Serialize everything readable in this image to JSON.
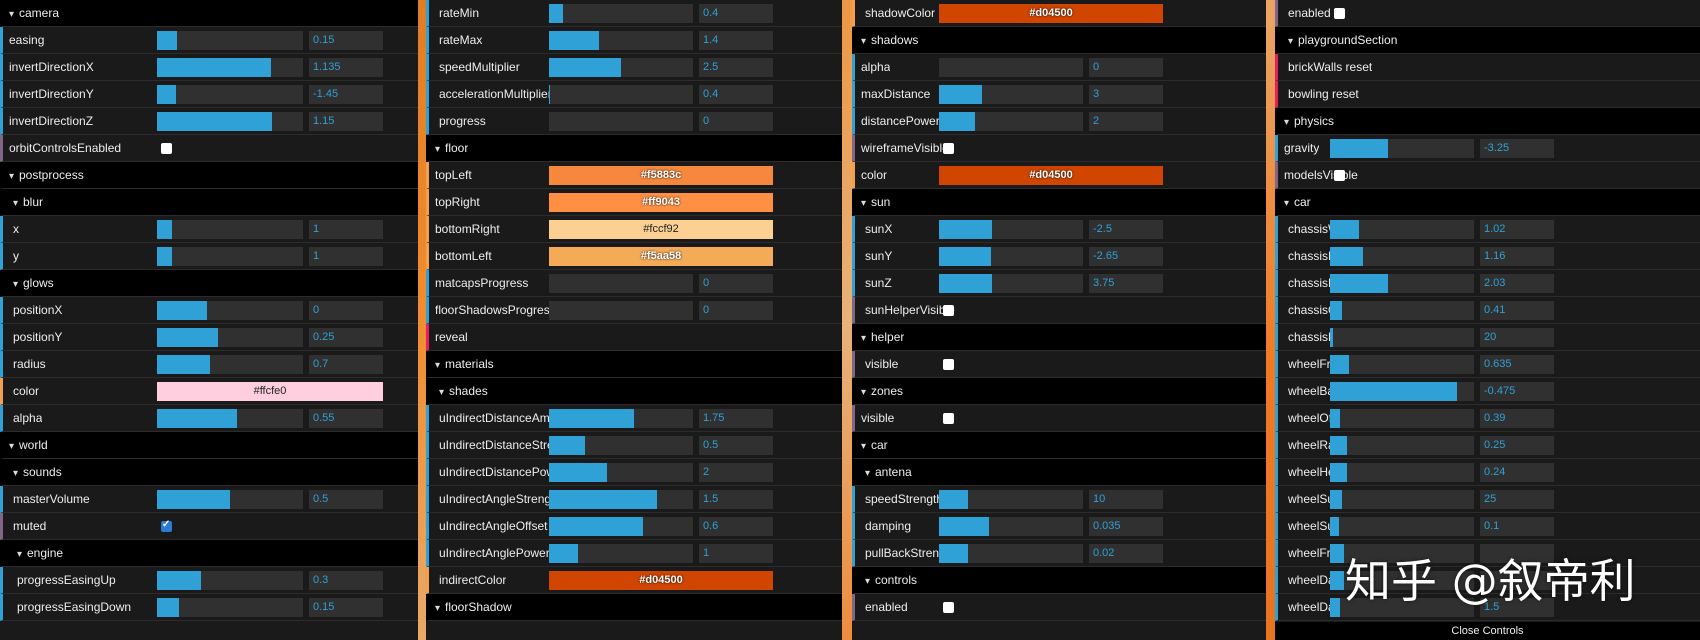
{
  "panel1": [
    {
      "type": "folder",
      "label": "camera",
      "depth": 0
    },
    {
      "type": "num",
      "label": "easing",
      "value": "0.15",
      "fill": 0.14,
      "depth": 0
    },
    {
      "type": "num",
      "label": "invertDirectionX",
      "value": "1.135",
      "fill": 0.78,
      "depth": 0
    },
    {
      "type": "num",
      "label": "invertDirectionY",
      "value": "-1.45",
      "fill": 0.13,
      "depth": 0
    },
    {
      "type": "num",
      "label": "invertDirectionZ",
      "value": "1.15",
      "fill": 0.79,
      "depth": 0
    },
    {
      "type": "bool",
      "label": "orbitControlsEnabled",
      "checked": false,
      "depth": 0
    },
    {
      "type": "folder",
      "label": "postprocess",
      "depth": 0
    },
    {
      "type": "folder",
      "label": "blur",
      "depth": 1
    },
    {
      "type": "num",
      "label": "x",
      "value": "1",
      "fill": 0.1,
      "depth": 1
    },
    {
      "type": "num",
      "label": "y",
      "value": "1",
      "fill": 0.1,
      "depth": 1
    },
    {
      "type": "folder",
      "label": "glows",
      "depth": 1
    },
    {
      "type": "num",
      "label": "positionX",
      "value": "0",
      "fill": 0.34,
      "depth": 1
    },
    {
      "type": "num",
      "label": "positionY",
      "value": "0.25",
      "fill": 0.42,
      "depth": 1
    },
    {
      "type": "num",
      "label": "radius",
      "value": "0.7",
      "fill": 0.36,
      "depth": 1
    },
    {
      "type": "color",
      "label": "color",
      "value": "#ffcfe0",
      "depth": 1
    },
    {
      "type": "num",
      "label": "alpha",
      "value": "0.55",
      "fill": 0.55,
      "depth": 1
    },
    {
      "type": "folder",
      "label": "world",
      "depth": 0
    },
    {
      "type": "folder",
      "label": "sounds",
      "depth": 1
    },
    {
      "type": "num",
      "label": "masterVolume",
      "value": "0.5",
      "fill": 0.5,
      "depth": 1
    },
    {
      "type": "bool",
      "label": "muted",
      "checked": true,
      "depth": 1
    },
    {
      "type": "folder",
      "label": "engine",
      "depth": 2
    },
    {
      "type": "num",
      "label": "progressEasingUp",
      "value": "0.3",
      "fill": 0.3,
      "depth": 2
    },
    {
      "type": "num",
      "label": "progressEasingDown",
      "value": "0.15",
      "fill": 0.15,
      "depth": 2
    }
  ],
  "panel2": [
    {
      "type": "num",
      "label": "rateMin",
      "value": "0.4",
      "fill": 0.1,
      "depth": 1
    },
    {
      "type": "num",
      "label": "rateMax",
      "value": "1.4",
      "fill": 0.35,
      "depth": 1
    },
    {
      "type": "num",
      "label": "speedMultiplier",
      "value": "2.5",
      "fill": 0.5,
      "depth": 1
    },
    {
      "type": "num",
      "label": "accelerationMultiplier",
      "value": "0.4",
      "fill": 0.01,
      "depth": 1
    },
    {
      "type": "num",
      "label": "progress",
      "value": "0",
      "fill": 0,
      "depth": 1
    },
    {
      "type": "folder",
      "label": "floor",
      "depth": 0
    },
    {
      "type": "color",
      "label": "topLeft",
      "value": "#f5883c",
      "depth": 0
    },
    {
      "type": "color",
      "label": "topRight",
      "value": "#ff9043",
      "depth": 0
    },
    {
      "type": "color",
      "label": "bottomRight",
      "value": "#fccf92",
      "depth": 0
    },
    {
      "type": "color",
      "label": "bottomLeft",
      "value": "#f5aa58",
      "depth": 0
    },
    {
      "type": "num",
      "label": "matcapsProgress",
      "value": "0",
      "fill": 0,
      "depth": 0
    },
    {
      "type": "num",
      "label": "floorShadowsProgress",
      "value": "0",
      "fill": 0,
      "depth": 0
    },
    {
      "type": "func",
      "label": "reveal",
      "depth": 0
    },
    {
      "type": "folder",
      "label": "materials",
      "depth": 0
    },
    {
      "type": "folder",
      "label": "shades",
      "depth": 1
    },
    {
      "type": "num",
      "label": "uIndirectDistanceAmplitude",
      "value": "1.75",
      "fill": 0.59,
      "depth": 1
    },
    {
      "type": "num",
      "label": "uIndirectDistanceStrength",
      "value": "0.5",
      "fill": 0.25,
      "depth": 1
    },
    {
      "type": "num",
      "label": "uIndirectDistancePower",
      "value": "2",
      "fill": 0.4,
      "depth": 1
    },
    {
      "type": "num",
      "label": "uIndirectAngleStrength",
      "value": "1.5",
      "fill": 0.75,
      "depth": 1
    },
    {
      "type": "num",
      "label": "uIndirectAngleOffset",
      "value": "0.6",
      "fill": 0.65,
      "depth": 1
    },
    {
      "type": "num",
      "label": "uIndirectAnglePower",
      "value": "1",
      "fill": 0.2,
      "depth": 1
    },
    {
      "type": "color",
      "label": "indirectColor",
      "value": "#d04500",
      "depth": 1
    },
    {
      "type": "folder",
      "label": "floorShadow",
      "depth": 0
    }
  ],
  "panel3": [
    {
      "type": "color",
      "label": "shadowColor",
      "value": "#d04500",
      "depth": 1
    },
    {
      "type": "folder",
      "label": "shadows",
      "depth": 0
    },
    {
      "type": "num",
      "label": "alpha",
      "value": "0",
      "fill": 0,
      "depth": 0
    },
    {
      "type": "num",
      "label": "maxDistance",
      "value": "3",
      "fill": 0.3,
      "depth": 0
    },
    {
      "type": "num",
      "label": "distancePower",
      "value": "2",
      "fill": 0.25,
      "depth": 0
    },
    {
      "type": "bool",
      "label": "wireframeVisible",
      "checked": false,
      "depth": 0
    },
    {
      "type": "color",
      "label": "color",
      "value": "#d04500",
      "depth": 0
    },
    {
      "type": "folder",
      "label": "sun",
      "depth": 0
    },
    {
      "type": "num",
      "label": "sunX",
      "value": "-2.5",
      "fill": 0.37,
      "depth": 1
    },
    {
      "type": "num",
      "label": "sunY",
      "value": "-2.65",
      "fill": 0.36,
      "depth": 1
    },
    {
      "type": "num",
      "label": "sunZ",
      "value": "3.75",
      "fill": 0.37,
      "depth": 1
    },
    {
      "type": "bool",
      "label": "sunHelperVisible",
      "checked": false,
      "depth": 1
    },
    {
      "type": "folder",
      "label": "helper",
      "depth": 0
    },
    {
      "type": "bool",
      "label": "visible",
      "checked": false,
      "depth": 1
    },
    {
      "type": "folder",
      "label": "zones",
      "depth": 0
    },
    {
      "type": "bool",
      "label": "visible",
      "checked": false,
      "depth": 0
    },
    {
      "type": "folder",
      "label": "car",
      "depth": 0
    },
    {
      "type": "folder",
      "label": "antena",
      "depth": 1
    },
    {
      "type": "num",
      "label": "speedStrength",
      "value": "10",
      "fill": 0.2,
      "depth": 1
    },
    {
      "type": "num",
      "label": "damping",
      "value": "0.035",
      "fill": 0.35,
      "depth": 1
    },
    {
      "type": "num",
      "label": "pullBackStrength",
      "value": "0.02",
      "fill": 0.2,
      "depth": 1
    },
    {
      "type": "folder",
      "label": "controls",
      "depth": 1
    },
    {
      "type": "bool",
      "label": "enabled",
      "checked": false,
      "depth": 1
    }
  ],
  "panel4": [
    {
      "type": "bool",
      "label": "enabled",
      "checked": false,
      "depth": 1
    },
    {
      "type": "folder",
      "label": "playgroundSection",
      "depth": 1
    },
    {
      "type": "func",
      "label": "brickWalls reset",
      "depth": 1
    },
    {
      "type": "func",
      "label": "bowling reset",
      "depth": 1
    },
    {
      "type": "folder",
      "label": "physics",
      "depth": 0
    },
    {
      "type": "num",
      "label": "gravity",
      "value": "-3.25",
      "fill": 0.4,
      "depth": 0
    },
    {
      "type": "bool",
      "label": "modelsVisible",
      "checked": false,
      "depth": 0
    },
    {
      "type": "folder",
      "label": "car",
      "depth": 0
    },
    {
      "type": "num",
      "label": "chassisWidth",
      "value": "1.02",
      "fill": 0.2,
      "depth": 1
    },
    {
      "type": "num",
      "label": "chassisHeight",
      "value": "1.16",
      "fill": 0.23,
      "depth": 1
    },
    {
      "type": "num",
      "label": "chassisDepth",
      "value": "2.03",
      "fill": 0.4,
      "depth": 1
    },
    {
      "type": "num",
      "label": "chassisOffset",
      "value": "0.41",
      "fill": 0.08,
      "depth": 1
    },
    {
      "type": "num",
      "label": "chassisMass",
      "value": "20",
      "fill": 0.02,
      "depth": 1
    },
    {
      "type": "num",
      "label": "wheelFrontOffsetDepth",
      "value": "0.635",
      "fill": 0.13,
      "depth": 1
    },
    {
      "type": "num",
      "label": "wheelBackOffsetDepth",
      "value": "-0.475",
      "fill": 0.88,
      "depth": 1
    },
    {
      "type": "num",
      "label": "wheelOffsetWidth",
      "value": "0.39",
      "fill": 0.07,
      "depth": 1
    },
    {
      "type": "num",
      "label": "wheelRadius",
      "value": "0.25",
      "fill": 0.12,
      "depth": 1
    },
    {
      "type": "num",
      "label": "wheelHeight",
      "value": "0.24",
      "fill": 0.12,
      "depth": 1
    },
    {
      "type": "num",
      "label": "wheelSuspensionStiffness",
      "value": "25",
      "fill": 0.08,
      "depth": 1
    },
    {
      "type": "num",
      "label": "wheelSuspensionRestLength",
      "value": "0.1",
      "fill": 0.06,
      "depth": 1
    },
    {
      "type": "num",
      "label": "wheelFrictionSlip",
      "value": "",
      "fill": 0.1,
      "depth": 1
    },
    {
      "type": "num",
      "label": "wheelDampingRelaxation",
      "value": "",
      "fill": 0.1,
      "depth": 1
    },
    {
      "type": "num",
      "label": "wheelDampingCompression",
      "value": "1.5",
      "fill": 0.07,
      "depth": 1
    }
  ],
  "close_label": "Close Controls",
  "watermark": "知乎 @叙帝利"
}
